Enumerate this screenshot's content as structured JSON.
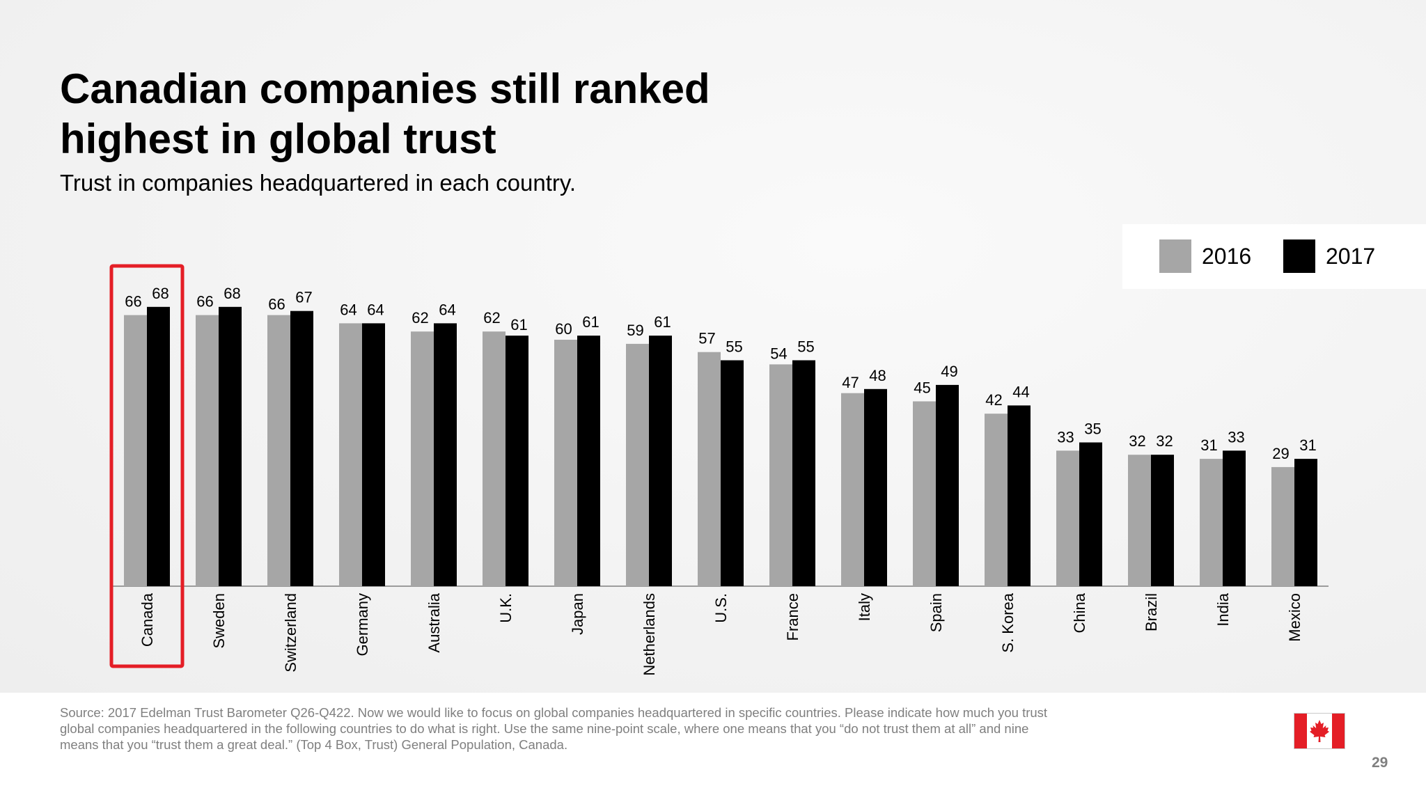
{
  "slide": {
    "title_lines": [
      "Canadian companies still ranked",
      "highest in global trust"
    ],
    "subtitle": "Trust in companies headquartered in each country.",
    "source": "Source: 2017 Edelman Trust Barometer Q26-Q422. Now we would like to focus on global companies headquartered in specific countries. Please indicate how much you trust global companies headquartered in the following countries to do what is right. Use the same nine-point scale, where one means that you “do not trust them at all” and nine means that you “trust them a great deal.” (Top 4 Box, Trust) General Population, Canada.",
    "page_number": "29",
    "flag_icon": "canada-flag-icon",
    "highlight_color": "#e41e26"
  },
  "chart_data": {
    "type": "bar",
    "title": "",
    "xlabel": "",
    "ylabel": "",
    "ylim": [
      0,
      70
    ],
    "grid": false,
    "legend_position": "top-right",
    "categories": [
      "Canada",
      "Sweden",
      "Switzerland",
      "Germany",
      "Australia",
      "U.K.",
      "Japan",
      "Netherlands",
      "U.S.",
      "France",
      "Italy",
      "Spain",
      "S. Korea",
      "China",
      "Brazil",
      "India",
      "Mexico"
    ],
    "series": [
      {
        "name": "2016",
        "color": "#a6a6a6",
        "values": [
          66,
          66,
          66,
          64,
          62,
          62,
          60,
          59,
          57,
          54,
          47,
          45,
          42,
          33,
          32,
          31,
          29
        ]
      },
      {
        "name": "2017",
        "color": "#000000",
        "values": [
          68,
          68,
          67,
          64,
          64,
          61,
          61,
          61,
          55,
          55,
          48,
          49,
          44,
          35,
          32,
          33,
          31
        ]
      }
    ],
    "highlighted_category": "Canada"
  }
}
